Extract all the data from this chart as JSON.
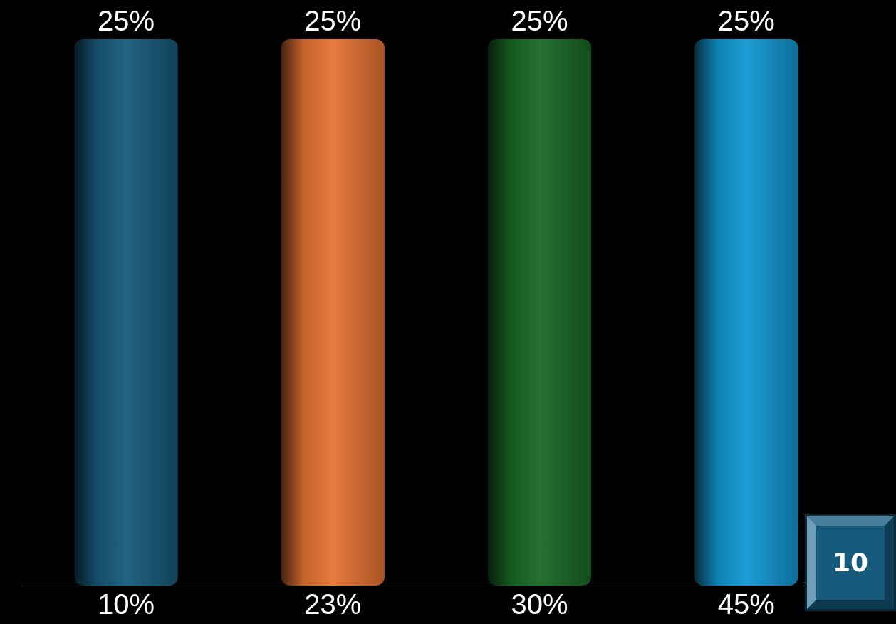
{
  "chart_data": {
    "type": "bar",
    "categories": [
      "10%",
      "23%",
      "30%",
      "45%"
    ],
    "values": [
      25,
      25,
      25,
      25
    ],
    "colors": [
      "#175b7c",
      "#e87434",
      "#196a26",
      "#1299d3"
    ],
    "value_labels": [
      "25%",
      "25%",
      "25%",
      "25%"
    ],
    "tick_labels": "x",
    "annotations": [
      "10"
    ]
  }
}
